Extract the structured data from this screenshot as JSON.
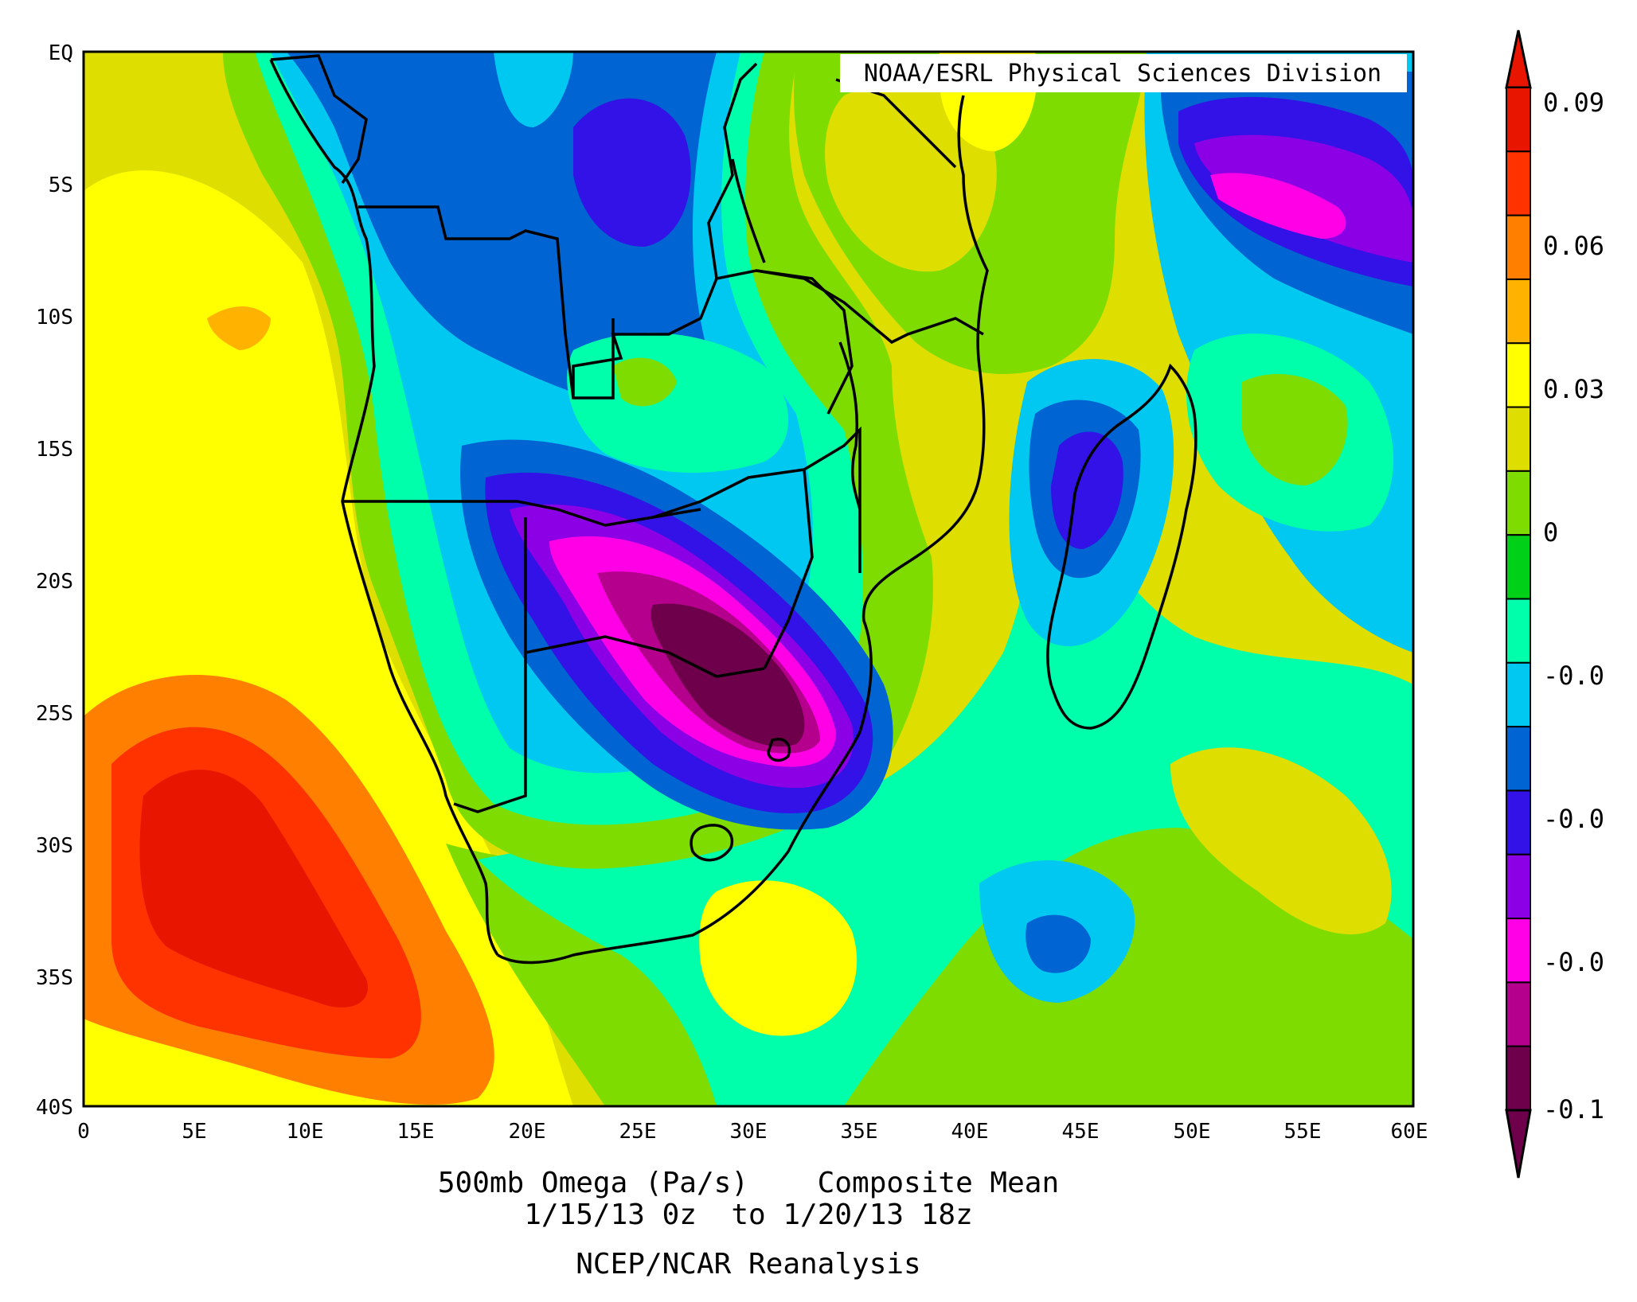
{
  "map": {
    "credit": "NOAA/ESRL Physical Sciences Division",
    "caption": {
      "line1": "500mb Omega (Pa/s)    Composite Mean",
      "line2": "1/15/13 0z  to 1/20/13 18z",
      "line3": "NCEP/NCAR Reanalysis"
    },
    "lat_labels": [
      "EQ",
      "5S",
      "10S",
      "15S",
      "20S",
      "25S",
      "30S",
      "35S",
      "40S"
    ],
    "lon_labels": [
      "0",
      "5E",
      "10E",
      "15E",
      "20E",
      "25E",
      "30E",
      "35E",
      "40E",
      "45E",
      "50E",
      "55E",
      "60E"
    ],
    "extent": {
      "lon": [
        0,
        60
      ],
      "lat": [
        0,
        -40
      ]
    }
  },
  "colorbar": {
    "labels": [
      "0.09",
      "0.06",
      "0.03",
      "0",
      "-0.0",
      "-0.0",
      "-0.0",
      "-0.1"
    ],
    "colors": [
      "#e81600",
      "#ff3300",
      "#ff7f00",
      "#ffb300",
      "#ffff00",
      "#dede00",
      "#7fdc00",
      "#00d018",
      "#00ffaa",
      "#00c8f0",
      "#0064d2",
      "#3212e6",
      "#8c00e6",
      "#ff00e6",
      "#b4008c",
      "#6e004b"
    ]
  },
  "chart_data": {
    "type": "heatmap",
    "title": "500mb Omega (Pa/s)    Composite Mean",
    "subtitle": "1/15/13 0z  to 1/20/13 18z",
    "note": "NCEP/NCAR Reanalysis",
    "x": {
      "ticks": [
        "0",
        "5E",
        "10E",
        "15E",
        "20E",
        "25E",
        "30E",
        "35E",
        "40E",
        "45E",
        "50E",
        "55E",
        "60E"
      ],
      "range": [
        0,
        60
      ]
    },
    "y": {
      "ticks": [
        "EQ",
        "5S",
        "10S",
        "15S",
        "20S",
        "25S",
        "30S",
        "35S",
        "40S"
      ],
      "range": [
        0,
        -40
      ]
    },
    "features": [
      {
        "name": "positive maximum",
        "lon": 8,
        "lat": -32,
        "value": 0.09
      },
      {
        "name": "negative minimum",
        "lon": 29,
        "lat": -24,
        "value": -0.1
      },
      {
        "name": "negative minimum",
        "lon": 52,
        "lat": -7,
        "value": -0.08
      }
    ],
    "colorbar_labels": [
      "0.09",
      "0.06",
      "0.03",
      "0",
      "-0.0",
      "-0.0",
      "-0.0",
      "-0.1"
    ]
  }
}
